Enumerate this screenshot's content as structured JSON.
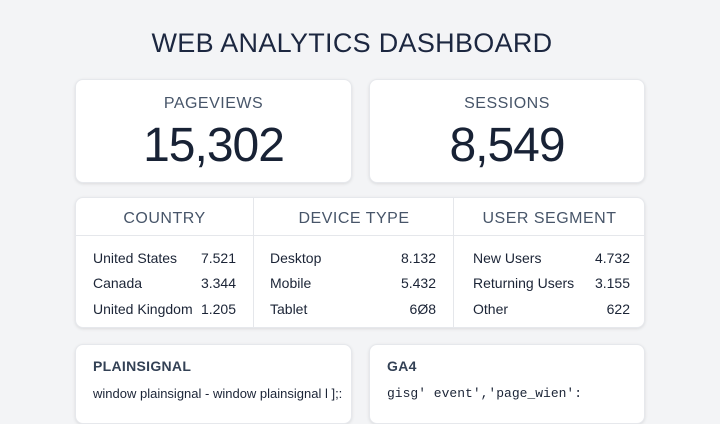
{
  "dashboard": {
    "title": "WEB ANALYTICS DASHBOARD"
  },
  "kpis": [
    {
      "label": "PAGEVIEWS",
      "value": "15,302"
    },
    {
      "label": "SESSIONS",
      "value": "8,549"
    }
  ],
  "breakdowns": [
    {
      "header": "COUNTRY",
      "rows": [
        {
          "name": "United States",
          "value": "7.521"
        },
        {
          "name": "Canada",
          "value": "3.344"
        },
        {
          "name": "United Kingdom",
          "value": "1.205"
        }
      ]
    },
    {
      "header": "DEVICE TYPE",
      "rows": [
        {
          "name": "Desktop",
          "value": "8.132"
        },
        {
          "name": "Mobile",
          "value": "5.432"
        },
        {
          "name": "Tablet",
          "value": "6Ø8"
        }
      ]
    },
    {
      "header": "USER SEGMENT",
      "rows": [
        {
          "name": "New Users",
          "value": "4.732"
        },
        {
          "name": "Returning Users",
          "value": "3.155"
        },
        {
          "name": "Other",
          "value": "622"
        }
      ]
    }
  ],
  "snippets": [
    {
      "title": "PLAINSIGNAL",
      "code": "window plainsignal - window plainsignal l ];:"
    },
    {
      "title": "GA4",
      "code": "gisg′ event′,′page_wien′:"
    }
  ]
}
